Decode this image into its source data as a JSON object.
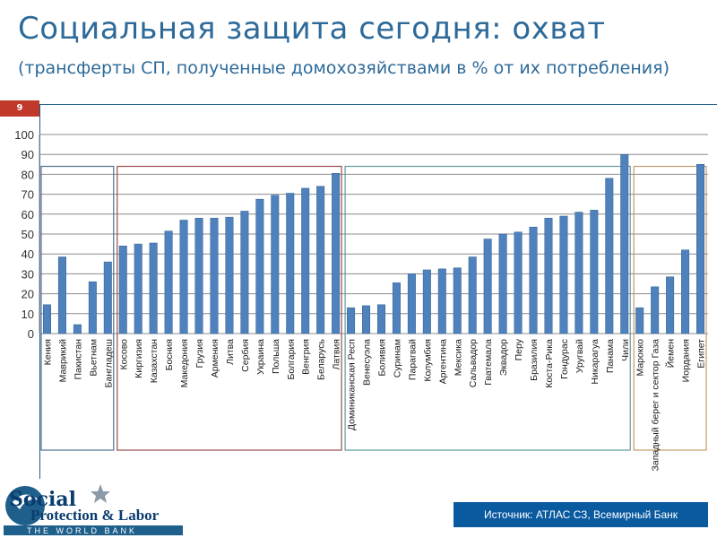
{
  "slide": {
    "title": "Социальная защита сегодня:  охват",
    "subtitle": "(трансферты СП, полученные домохозяйствами в % от их потребления)",
    "page_number": "9",
    "source": "Источник: АТЛАС СЗ,  Всемирный Банк",
    "logo": {
      "text_line1": "Social",
      "text_line2": "Protection & Labor",
      "text_line3": "THE WORLD BANK"
    }
  },
  "chart_data": {
    "type": "bar",
    "ylim": [
      0,
      100
    ],
    "yticks": [
      0,
      10,
      20,
      30,
      40,
      50,
      60,
      70,
      80,
      90,
      100
    ],
    "grid": true,
    "bar_color": "#4f81bd",
    "categories": [
      "Кения",
      "Маврикий",
      "Пакистан",
      "Вьетнам",
      "Бангладеш",
      "Косово",
      "Киргизия",
      "Казахстан",
      "Босния",
      "Македония",
      "Грузия",
      "Армения",
      "Литва",
      "Сербия",
      "Украина",
      "Польша",
      "Болгария",
      "Венгрия",
      "Беларусь",
      "Латвия",
      "Доминиканская Респ",
      "Венесуэла",
      "Боливия",
      "Суринам",
      "Парагвай",
      "Колумбия",
      "Аргентина",
      "Мексика",
      "Сальвадор",
      "Гватемала",
      "Эквадор",
      "Перу",
      "Бразилия",
      "Коста-Рика",
      "Гондурас",
      "Уругвай",
      "Никарагуа",
      "Панама",
      "Чили",
      "Марокко",
      "Западный берег и сектор Газа",
      "Йемен",
      "Иордания",
      "Египет"
    ],
    "values": [
      14.5,
      38.5,
      4.5,
      26,
      36,
      44,
      45,
      45.5,
      51.5,
      57,
      58,
      58,
      58.5,
      61.5,
      67.5,
      69.5,
      70.5,
      73,
      74,
      80.5,
      13,
      14,
      14.5,
      25.5,
      30,
      32,
      32.5,
      33,
      38.5,
      47.5,
      50,
      51,
      53.5,
      58,
      59,
      61,
      62,
      78,
      90,
      13,
      23.5,
      28.5,
      42,
      85
    ],
    "groups": [
      {
        "start": 0,
        "end": 4,
        "color": "#4f6f8f"
      },
      {
        "start": 5,
        "end": 19,
        "color": "#9b4d4d"
      },
      {
        "start": 20,
        "end": 38,
        "color": "#5f9aa0"
      },
      {
        "start": 39,
        "end": 43,
        "color": "#c49a6c"
      }
    ]
  }
}
